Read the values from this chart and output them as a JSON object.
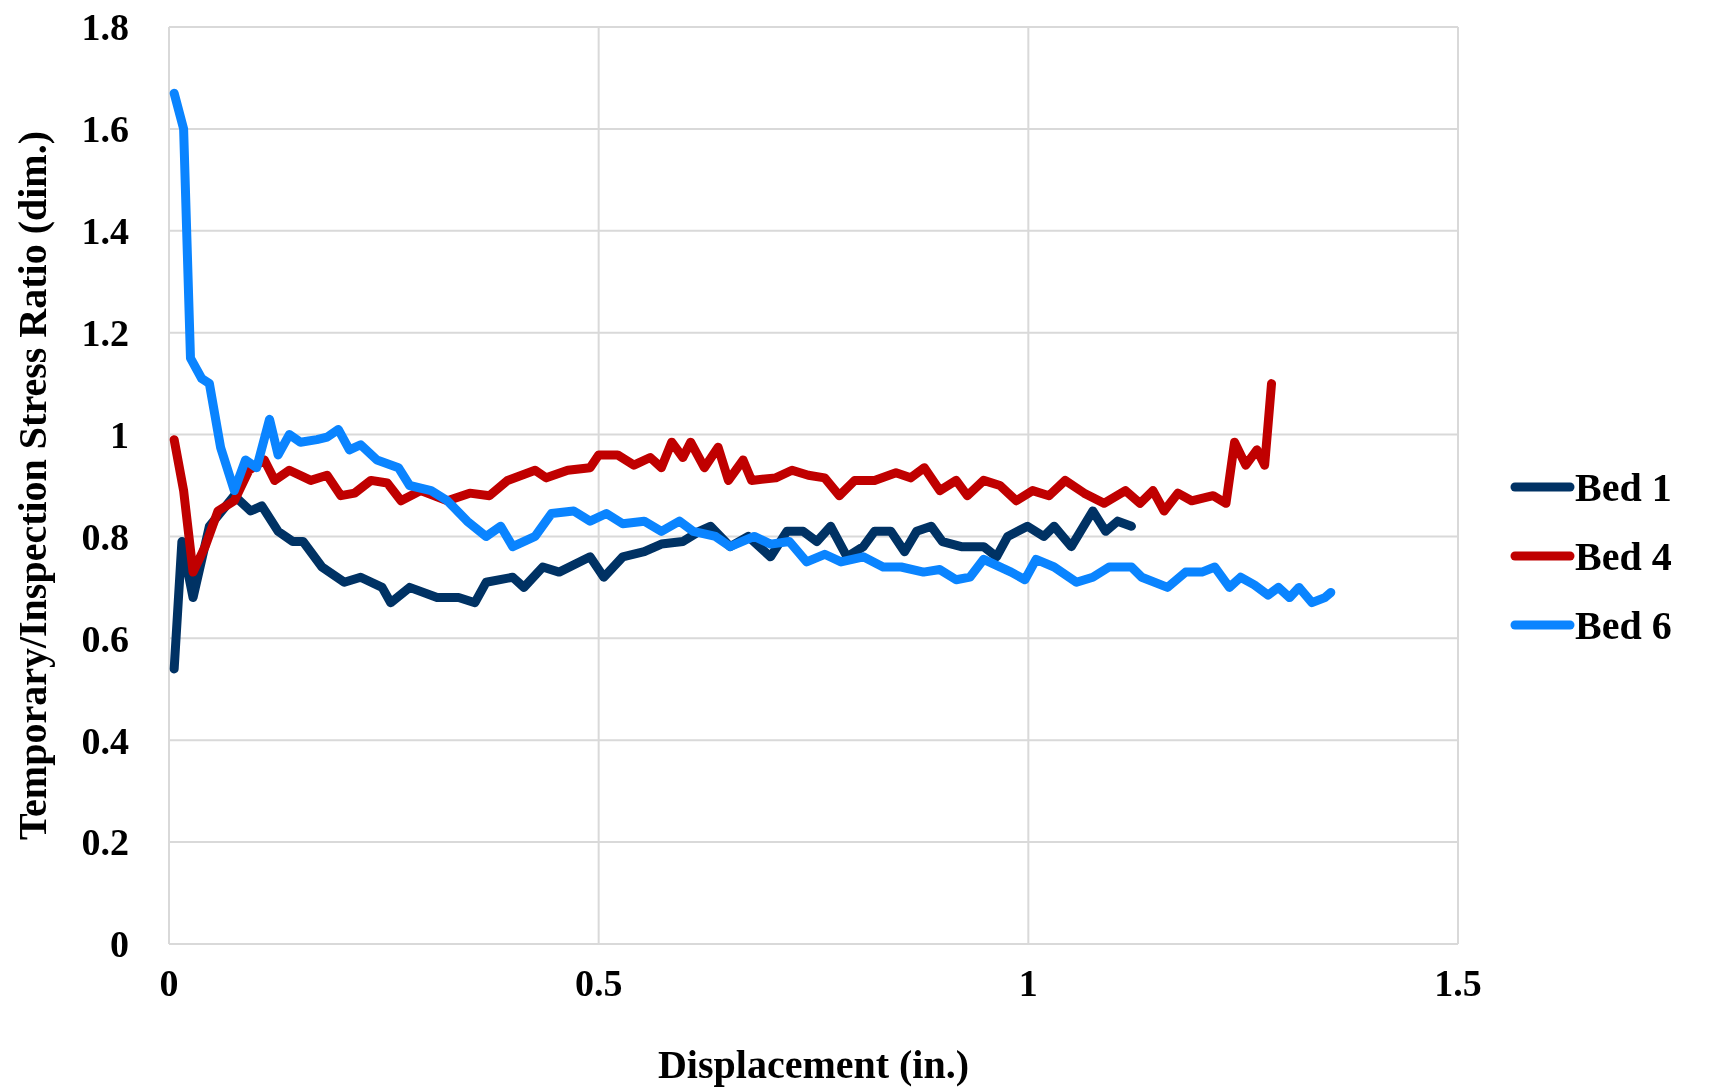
{
  "chart_data": {
    "type": "line",
    "xlabel": "Displacement (in.)",
    "ylabel": "Temporary/Inspection Stress Ratio (dim.)",
    "xlim": [
      0,
      1.5
    ],
    "ylim": [
      0,
      1.8
    ],
    "xticks": [
      0,
      0.5,
      1,
      1.5
    ],
    "yticks": [
      0,
      0.2,
      0.4,
      0.6,
      0.8,
      1,
      1.2,
      1.4,
      1.6,
      1.8
    ],
    "grid": true,
    "legend": "right",
    "marker": "none",
    "line_style": "solid",
    "series": [
      {
        "name": "Bed 1",
        "color": "#003264",
        "x": [
          0.006,
          0.015,
          0.028,
          0.047,
          0.076,
          0.095,
          0.108,
          0.127,
          0.144,
          0.156,
          0.178,
          0.204,
          0.223,
          0.248,
          0.258,
          0.28,
          0.312,
          0.337,
          0.356,
          0.369,
          0.4,
          0.413,
          0.435,
          0.454,
          0.49,
          0.506,
          0.528,
          0.553,
          0.573,
          0.598,
          0.617,
          0.63,
          0.653,
          0.674,
          0.7,
          0.719,
          0.738,
          0.754,
          0.77,
          0.789,
          0.808,
          0.821,
          0.84,
          0.856,
          0.87,
          0.887,
          0.9,
          0.922,
          0.948,
          0.963,
          0.976,
          0.999,
          1.018,
          1.03,
          1.05,
          1.075,
          1.09,
          1.104,
          1.12
        ],
        "values": [
          0.54,
          0.79,
          0.68,
          0.82,
          0.88,
          0.85,
          0.86,
          0.81,
          0.79,
          0.79,
          0.74,
          0.71,
          0.72,
          0.7,
          0.67,
          0.7,
          0.68,
          0.68,
          0.67,
          0.71,
          0.72,
          0.7,
          0.74,
          0.73,
          0.76,
          0.72,
          0.76,
          0.77,
          0.785,
          0.79,
          0.81,
          0.82,
          0.78,
          0.8,
          0.76,
          0.81,
          0.81,
          0.79,
          0.82,
          0.76,
          0.78,
          0.81,
          0.81,
          0.77,
          0.81,
          0.82,
          0.79,
          0.78,
          0.78,
          0.76,
          0.8,
          0.82,
          0.8,
          0.82,
          0.78,
          0.85,
          0.81,
          0.83,
          0.82
        ]
      },
      {
        "name": "Bed 4",
        "color": "#c00000",
        "x": [
          0.006,
          0.017,
          0.028,
          0.042,
          0.057,
          0.076,
          0.093,
          0.111,
          0.123,
          0.14,
          0.165,
          0.184,
          0.2,
          0.216,
          0.235,
          0.254,
          0.27,
          0.293,
          0.324,
          0.35,
          0.373,
          0.394,
          0.426,
          0.439,
          0.464,
          0.49,
          0.5,
          0.522,
          0.541,
          0.56,
          0.573,
          0.585,
          0.598,
          0.607,
          0.623,
          0.639,
          0.651,
          0.668,
          0.678,
          0.706,
          0.725,
          0.744,
          0.763,
          0.78,
          0.798,
          0.821,
          0.846,
          0.863,
          0.879,
          0.897,
          0.916,
          0.929,
          0.948,
          0.967,
          0.986,
          1.005,
          1.024,
          1.043,
          1.065,
          1.088,
          1.113,
          1.13,
          1.145,
          1.158,
          1.174,
          1.19,
          1.215,
          1.23,
          1.24,
          1.253,
          1.266,
          1.275,
          1.283
        ],
        "values": [
          0.99,
          0.89,
          0.73,
          0.78,
          0.85,
          0.87,
          0.93,
          0.95,
          0.91,
          0.93,
          0.91,
          0.92,
          0.88,
          0.885,
          0.91,
          0.905,
          0.87,
          0.89,
          0.87,
          0.885,
          0.88,
          0.91,
          0.93,
          0.915,
          0.93,
          0.935,
          0.96,
          0.96,
          0.94,
          0.955,
          0.935,
          0.985,
          0.955,
          0.985,
          0.935,
          0.975,
          0.91,
          0.95,
          0.91,
          0.915,
          0.93,
          0.92,
          0.915,
          0.88,
          0.91,
          0.91,
          0.925,
          0.915,
          0.935,
          0.89,
          0.91,
          0.88,
          0.91,
          0.9,
          0.87,
          0.89,
          0.88,
          0.91,
          0.885,
          0.865,
          0.89,
          0.865,
          0.89,
          0.85,
          0.885,
          0.87,
          0.88,
          0.865,
          0.985,
          0.94,
          0.97,
          0.94,
          1.1
        ]
      },
      {
        "name": "Bed 6",
        "color": "#0a84ff",
        "x": [
          0.006,
          0.017,
          0.025,
          0.038,
          0.047,
          0.06,
          0.076,
          0.089,
          0.102,
          0.117,
          0.127,
          0.14,
          0.153,
          0.172,
          0.184,
          0.197,
          0.21,
          0.223,
          0.242,
          0.267,
          0.28,
          0.305,
          0.324,
          0.347,
          0.369,
          0.386,
          0.4,
          0.426,
          0.445,
          0.471,
          0.49,
          0.509,
          0.528,
          0.553,
          0.573,
          0.594,
          0.61,
          0.636,
          0.653,
          0.681,
          0.7,
          0.722,
          0.742,
          0.763,
          0.782,
          0.808,
          0.831,
          0.852,
          0.878,
          0.897,
          0.916,
          0.932,
          0.948,
          0.98,
          0.996,
          1.009,
          1.03,
          1.056,
          1.075,
          1.094,
          1.12,
          1.132,
          1.162,
          1.183,
          1.202,
          1.217,
          1.234,
          1.247,
          1.263,
          1.279,
          1.291,
          1.304,
          1.315,
          1.33,
          1.345,
          1.352
        ],
        "values": [
          1.67,
          1.6,
          1.15,
          1.11,
          1.1,
          0.975,
          0.89,
          0.95,
          0.935,
          1.03,
          0.96,
          1,
          0.985,
          0.99,
          0.995,
          1.01,
          0.97,
          0.98,
          0.95,
          0.935,
          0.9,
          0.89,
          0.87,
          0.83,
          0.8,
          0.82,
          0.78,
          0.8,
          0.845,
          0.85,
          0.83,
          0.845,
          0.825,
          0.83,
          0.81,
          0.83,
          0.81,
          0.8,
          0.78,
          0.8,
          0.785,
          0.79,
          0.75,
          0.765,
          0.75,
          0.76,
          0.74,
          0.74,
          0.73,
          0.735,
          0.715,
          0.72,
          0.755,
          0.73,
          0.715,
          0.755,
          0.74,
          0.71,
          0.72,
          0.74,
          0.74,
          0.72,
          0.7,
          0.73,
          0.73,
          0.74,
          0.7,
          0.72,
          0.705,
          0.685,
          0.7,
          0.68,
          0.7,
          0.67,
          0.68,
          0.69
        ]
      }
    ]
  }
}
